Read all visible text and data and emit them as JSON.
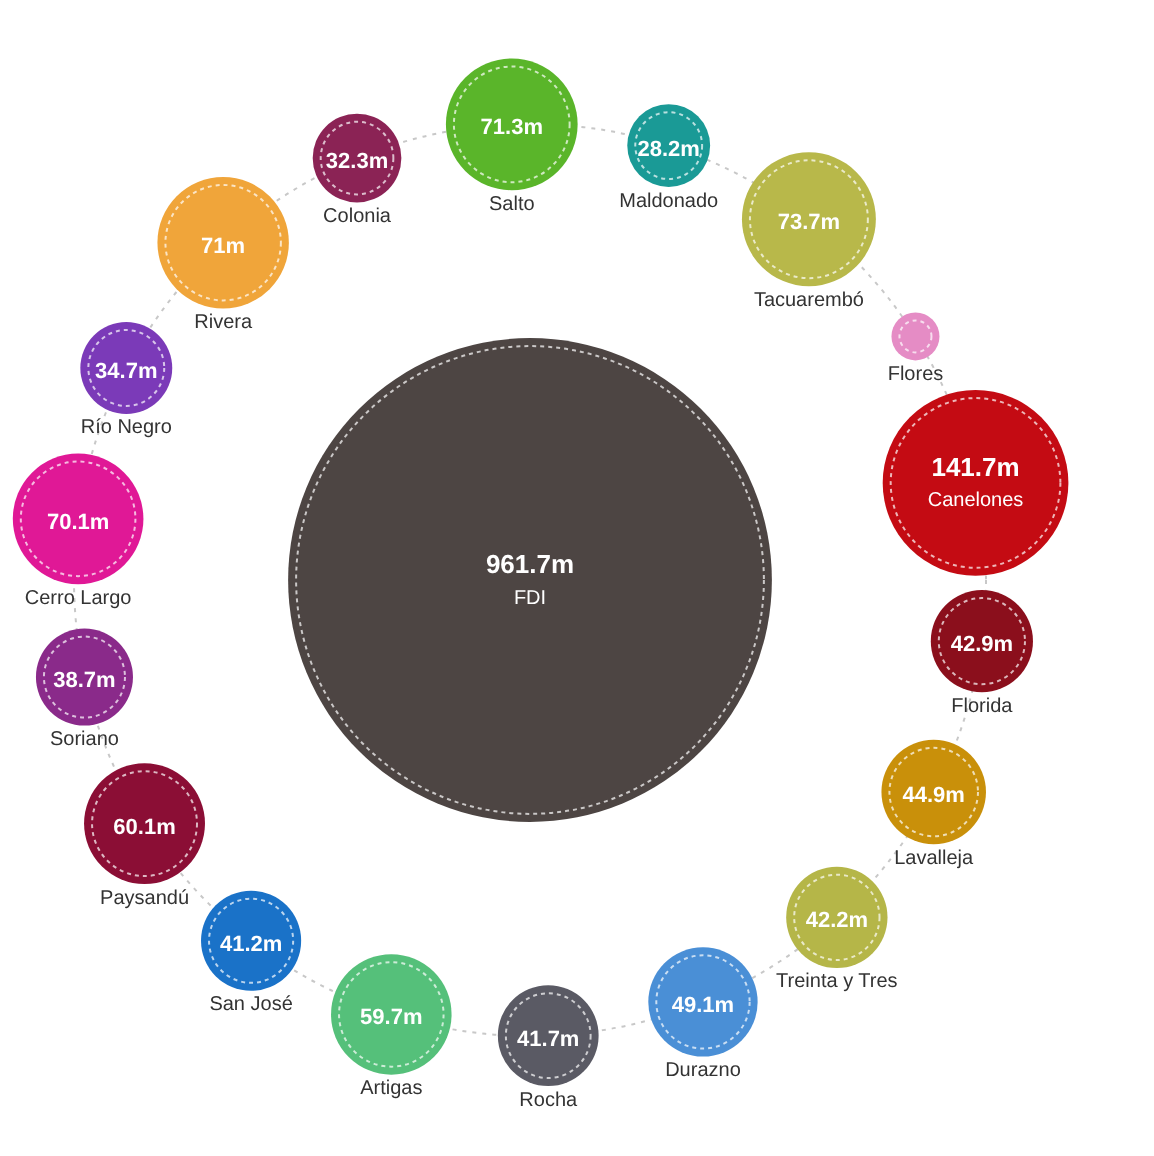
{
  "chart_data": {
    "type": "other",
    "categories": [
      "FDI",
      "Salto",
      "Maldonado",
      "Tacuarembó",
      "Flores",
      "Canelones",
      "Florida",
      "Lavalleja",
      "Treinta y Tres",
      "Durazno",
      "Rocha",
      "Artigas",
      "San José",
      "Paysandú",
      "Soriano",
      "Cerro Largo",
      "Río Negro",
      "Rivera",
      "Colonia"
    ],
    "values": [
      961.7,
      71.3,
      28.2,
      73.7,
      null,
      141.7,
      42.9,
      44.9,
      42.2,
      49.1,
      41.7,
      59.7,
      41.2,
      60.1,
      38.7,
      70.1,
      34.7,
      71,
      32.3
    ],
    "value_labels": [
      "961.7m",
      "71.3m",
      "28.2m",
      "73.7m",
      null,
      "141.7m",
      "42.9m",
      "44.9m",
      "42.2m",
      "49.1m",
      "41.7m",
      "59.7m",
      "41.2m",
      "60.1m",
      "38.7m",
      "70.1m",
      "34.7m",
      "71m",
      "32.3m"
    ],
    "colors": [
      "#4d4543",
      "#5ab52a",
      "#1a9a96",
      "#b8b84a",
      "#e58cc5",
      "#c40b13",
      "#8b0f1c",
      "#c9900a",
      "#b5b648",
      "#4a8fd6",
      "#5a5a64",
      "#55c07a",
      "#1a72c8",
      "#8b0e35",
      "#8a2a8a",
      "#e01896",
      "#7b3ab8",
      "#f0a53a",
      "#8b2355"
    ]
  }
}
